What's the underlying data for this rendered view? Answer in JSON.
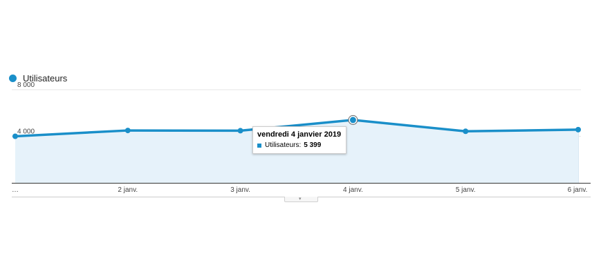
{
  "chart_data": {
    "type": "area",
    "categories": [
      "…",
      "2 janv.",
      "3 janv.",
      "4 janv.",
      "5 janv.",
      "6 janv."
    ],
    "series": [
      {
        "name": "Utilisateurs",
        "values": [
          4000,
          4500,
          4480,
          5399,
          4430,
          4570
        ]
      }
    ],
    "y_ticks": [
      {
        "value": 8000,
        "label": "8 000"
      },
      {
        "value": 4000,
        "label": "4 000"
      }
    ],
    "ylim": [
      0,
      8000
    ],
    "grid": true,
    "legend_position": "top-left",
    "colors": {
      "line": "#1a8fc9",
      "fill": "#e6f2fa",
      "grid": "#e6e6e6"
    },
    "highlighted_index": 3
  },
  "tooltip": {
    "title": "vendredi 4 janvier 2019",
    "series_label": "Utilisateurs:",
    "value": "5 399"
  },
  "expander_icon": "chevron-down-icon"
}
